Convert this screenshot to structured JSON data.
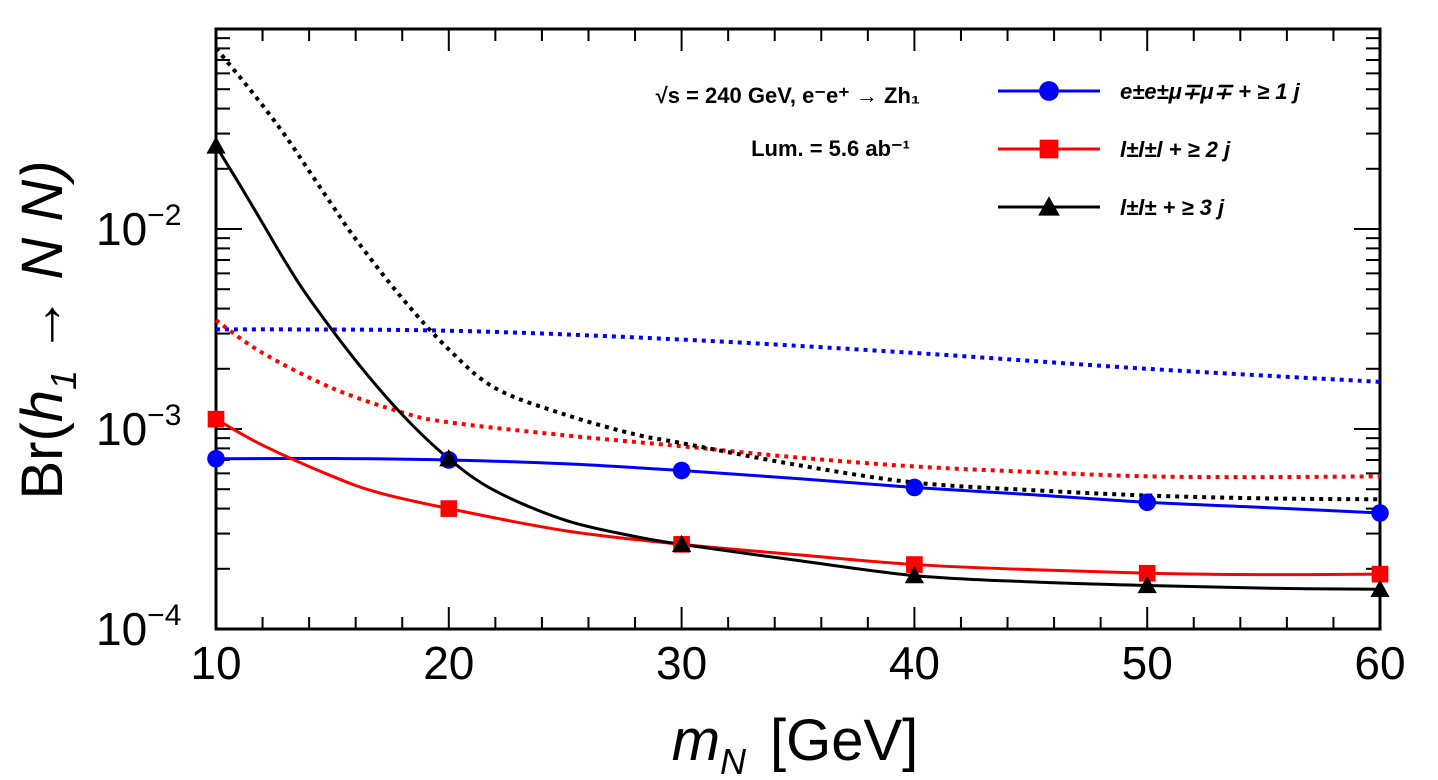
{
  "chart_data": {
    "type": "line",
    "xlabel": "m_N [GeV]",
    "xlabel_main": "m",
    "xlabel_sub": "N",
    "xlabel_unit": "[GeV]",
    "ylabel": "Br(h_1 → N N)",
    "ylabel_pre": "Br(",
    "ylabel_h": "h",
    "ylabel_sub": "1",
    "ylabel_post": " → N N)",
    "xlim": [
      10,
      60
    ],
    "ylim": [
      0.0001,
      0.1
    ],
    "yscale": "log",
    "x_ticks": [
      "10",
      "20",
      "30",
      "40",
      "50",
      "60"
    ],
    "y_ticks": [
      {
        "value": 0.01,
        "base": "10",
        "exp": "−2"
      },
      {
        "value": 0.001,
        "base": "10",
        "exp": "−3"
      },
      {
        "value": 0.0001,
        "base": "10",
        "exp": "−4"
      }
    ],
    "annotations": {
      "energy": "√s = 240 GeV, e⁻e⁺ → Zh₁",
      "lumi": "Lum. = 5.6 ab⁻¹"
    },
    "series": [
      {
        "name": "e±e±μ∓μ∓ + ≥ 1 j",
        "color": "#0000ff",
        "marker": "circle",
        "x": [
          10,
          20,
          30,
          40,
          50,
          60
        ],
        "values": [
          0.00071,
          0.0007,
          0.00062,
          0.00051,
          0.00043,
          0.00038
        ],
        "smooth_x": [
          10,
          15,
          20,
          25,
          30,
          35,
          40,
          45,
          50,
          55,
          60
        ],
        "smooth_values": [
          0.00071,
          0.000712,
          0.0007,
          0.00067,
          0.00062,
          0.000565,
          0.00051,
          0.00047,
          0.00043,
          0.000405,
          0.00038
        ],
        "expected_x": [
          10,
          20,
          30,
          40,
          50,
          60
        ],
        "expected_values": [
          0.00315,
          0.0031,
          0.0028,
          0.0024,
          0.002,
          0.00172
        ]
      },
      {
        "name": "l±l±l + ≥ 2 j",
        "color": "#ff0000",
        "marker": "square",
        "x": [
          10,
          20,
          30,
          40,
          50,
          60
        ],
        "values": [
          0.00112,
          0.0004,
          0.000265,
          0.00021,
          0.00019,
          0.000188
        ],
        "smooth_x": [
          10,
          12,
          15,
          17,
          20,
          25,
          30,
          35,
          40,
          45,
          50,
          55,
          60
        ],
        "smooth_values": [
          0.00112,
          0.00083,
          0.00058,
          0.00048,
          0.0004,
          0.00031,
          0.000265,
          0.000235,
          0.00021,
          0.000198,
          0.00019,
          0.000187,
          0.000188
        ],
        "expected_x": [
          10,
          12,
          15,
          18,
          20,
          25,
          30,
          35,
          40,
          45,
          50,
          55,
          60
        ],
        "expected_values": [
          0.0035,
          0.0024,
          0.0016,
          0.00121,
          0.00108,
          0.00093,
          0.00082,
          0.00072,
          0.00065,
          0.00061,
          0.00058,
          0.000575,
          0.00058
        ]
      },
      {
        "name": "l±l± + ≥ 3 j",
        "color": "#000000",
        "marker": "triangle",
        "x": [
          10,
          20,
          30,
          40,
          50,
          60
        ],
        "values": [
          0.026,
          0.00071,
          0.000265,
          0.000185,
          0.000165,
          0.000158
        ],
        "smooth_x": [
          10,
          11,
          12,
          13,
          14,
          16,
          18,
          20,
          22,
          25,
          28,
          30,
          35,
          40,
          45,
          50,
          55,
          60
        ],
        "smooth_values": [
          0.026,
          0.0168,
          0.0107,
          0.0068,
          0.0045,
          0.0022,
          0.00118,
          0.00071,
          0.00049,
          0.00035,
          0.00029,
          0.000265,
          0.00022,
          0.000185,
          0.000172,
          0.000165,
          0.00016,
          0.000158
        ],
        "expected_x": [
          10,
          11,
          12,
          13,
          14,
          15,
          16,
          18,
          20,
          22,
          25,
          28,
          30,
          35,
          40,
          45,
          50,
          55,
          60
        ],
        "expected_values": [
          0.08,
          0.058,
          0.0415,
          0.029,
          0.0195,
          0.0131,
          0.0089,
          0.0045,
          0.0025,
          0.0016,
          0.00118,
          0.00094,
          0.00085,
          0.00066,
          0.00054,
          0.000495,
          0.000465,
          0.00045,
          0.000445
        ]
      }
    ],
    "legend_position": "top-right"
  }
}
